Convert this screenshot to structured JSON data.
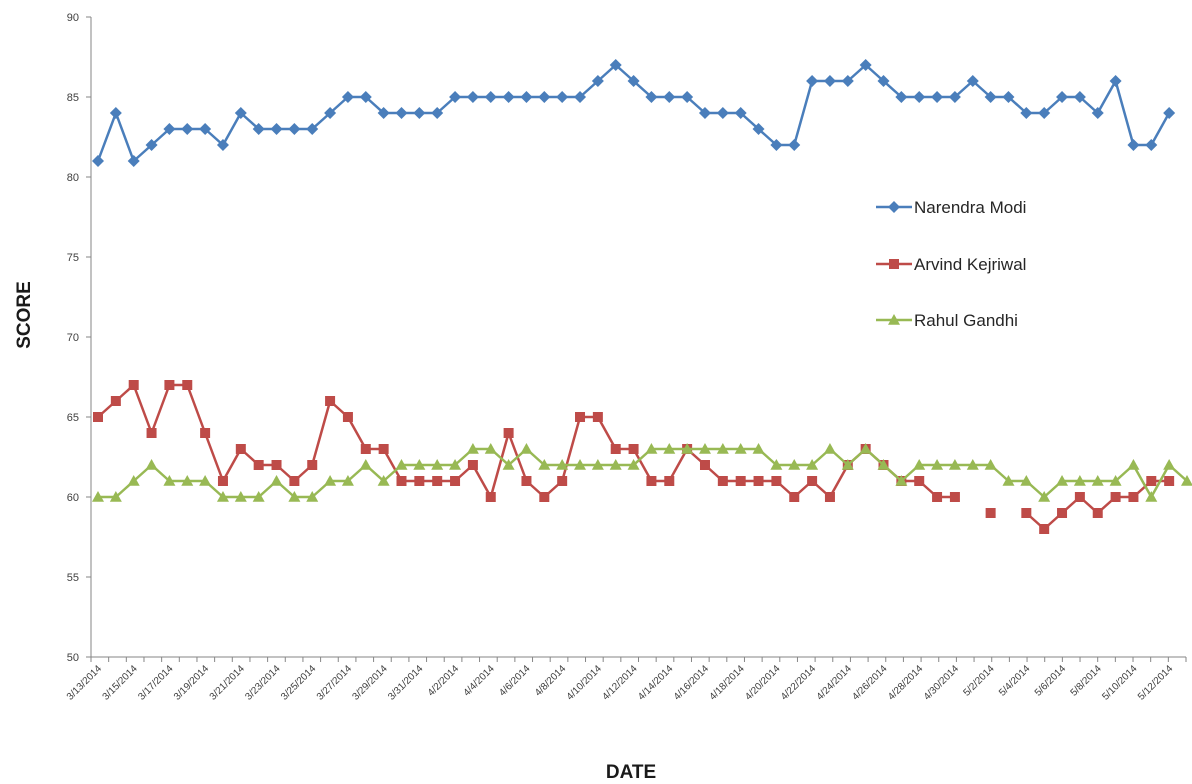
{
  "chart_data": {
    "type": "line",
    "title": "",
    "xlabel": "DATE",
    "ylabel": "SCORE",
    "ylim": [
      50,
      90
    ],
    "y_ticks": [
      "50",
      "55",
      "60",
      "65",
      "70",
      "75",
      "80",
      "85",
      "90"
    ],
    "x_tick_labels": [
      "3/13/2014",
      "3/15/2014",
      "3/17/2014",
      "3/19/2014",
      "3/21/2014",
      "3/23/2014",
      "3/25/2014",
      "3/27/2014",
      "3/29/2014",
      "3/31/2014",
      "4/2/2014",
      "4/4/2014",
      "4/6/2014",
      "4/8/2014",
      "4/10/2014",
      "4/12/2014",
      "4/14/2014",
      "4/16/2014",
      "4/18/2014",
      "4/20/2014",
      "4/22/2014",
      "4/24/2014",
      "4/26/2014",
      "4/28/2014",
      "4/30/2014",
      "5/2/2014",
      "5/4/2014",
      "5/6/2014",
      "5/8/2014",
      "5/10/2014",
      "5/12/2014"
    ],
    "x": [
      "3/13/2014",
      "3/14/2014",
      "3/15/2014",
      "3/16/2014",
      "3/17/2014",
      "3/18/2014",
      "3/19/2014",
      "3/20/2014",
      "3/21/2014",
      "3/22/2014",
      "3/23/2014",
      "3/24/2014",
      "3/25/2014",
      "3/26/2014",
      "3/27/2014",
      "3/28/2014",
      "3/29/2014",
      "3/30/2014",
      "3/31/2014",
      "4/1/2014",
      "4/2/2014",
      "4/3/2014",
      "4/4/2014",
      "4/5/2014",
      "4/6/2014",
      "4/7/2014",
      "4/8/2014",
      "4/9/2014",
      "4/10/2014",
      "4/11/2014",
      "4/12/2014",
      "4/13/2014",
      "4/14/2014",
      "4/15/2014",
      "4/16/2014",
      "4/17/2014",
      "4/18/2014",
      "4/19/2014",
      "4/20/2014",
      "4/21/2014",
      "4/22/2014",
      "4/23/2014",
      "4/24/2014",
      "4/25/2014",
      "4/26/2014",
      "4/27/2014",
      "4/28/2014",
      "4/29/2014",
      "4/30/2014",
      "5/1/2014",
      "5/2/2014",
      "5/3/2014",
      "5/4/2014",
      "5/5/2014",
      "5/6/2014",
      "5/7/2014",
      "5/8/2014",
      "5/9/2014",
      "5/10/2014",
      "5/11/2014",
      "5/12/2014",
      "5/13/2014"
    ],
    "series": [
      {
        "name": "Narendra Modi",
        "color": "#4a7ebb",
        "marker": "diamond",
        "values": [
          81,
          84,
          81,
          82,
          83,
          83,
          83,
          82,
          84,
          83,
          83,
          83,
          83,
          84,
          85,
          85,
          84,
          84,
          84,
          84,
          85,
          85,
          85,
          85,
          85,
          85,
          85,
          85,
          86,
          87,
          86,
          85,
          85,
          85,
          84,
          84,
          84,
          83,
          82,
          82,
          86,
          86,
          86,
          87,
          86,
          85,
          85,
          85,
          85,
          86,
          85,
          85,
          84,
          84,
          85,
          85,
          84,
          86,
          82,
          82,
          84,
          null
        ]
      },
      {
        "name": "Arvind Kejriwal",
        "color": "#be4b48",
        "marker": "square",
        "values": [
          65,
          66,
          67,
          64,
          67,
          67,
          64,
          61,
          63,
          62,
          62,
          61,
          62,
          66,
          65,
          63,
          63,
          61,
          61,
          61,
          61,
          62,
          60,
          64,
          61,
          60,
          61,
          65,
          65,
          63,
          63,
          61,
          61,
          63,
          62,
          61,
          61,
          61,
          61,
          60,
          61,
          60,
          62,
          63,
          62,
          61,
          61,
          60,
          60,
          null,
          59,
          null,
          59,
          58,
          59,
          60,
          59,
          60,
          60,
          61,
          61,
          null
        ]
      },
      {
        "name": "Rahul Gandhi",
        "color": "#98b954",
        "marker": "triangle",
        "values": [
          60,
          60,
          61,
          62,
          61,
          61,
          61,
          60,
          60,
          60,
          61,
          60,
          60,
          61,
          61,
          62,
          61,
          62,
          62,
          62,
          62,
          63,
          63,
          62,
          63,
          62,
          62,
          62,
          62,
          62,
          62,
          63,
          63,
          63,
          63,
          63,
          63,
          63,
          62,
          62,
          62,
          63,
          62,
          63,
          62,
          61,
          62,
          62,
          62,
          62,
          62,
          61,
          61,
          60,
          61,
          61,
          61,
          61,
          62,
          60,
          62,
          61
        ]
      }
    ],
    "legend_position": "right",
    "grid": false
  }
}
